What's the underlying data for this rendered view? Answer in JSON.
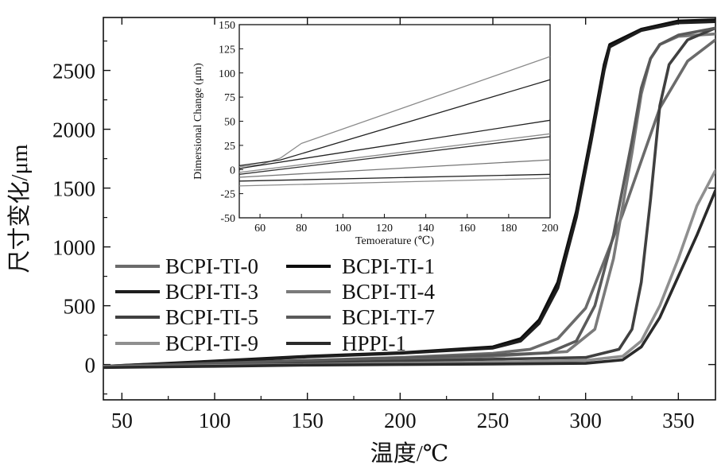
{
  "chart_data": [
    {
      "type": "line",
      "title": "",
      "xlabel": "温度/℃",
      "ylabel": "尺寸变化/μm",
      "xlim": [
        40,
        370
      ],
      "ylim": [
        -300,
        2950
      ],
      "xticks": [
        50,
        100,
        150,
        200,
        250,
        300,
        350
      ],
      "yticks": [
        0,
        500,
        1000,
        1500,
        2000,
        2500
      ],
      "grid": false,
      "legend_position": "center-left",
      "series": [
        {
          "name": "BCPI-TI-0",
          "color": "#6b6b6b",
          "x": [
            40,
            100,
            150,
            200,
            250,
            270,
            285,
            300,
            320,
            340,
            355,
            370
          ],
          "y": [
            -15,
            10,
            35,
            60,
            95,
            130,
            220,
            480,
            1280,
            2180,
            2580,
            2760
          ]
        },
        {
          "name": "BCPI-TI-1",
          "color": "#0d0d0d",
          "x": [
            40,
            100,
            150,
            200,
            250,
            265,
            275,
            285,
            295,
            303,
            310,
            313,
            330,
            350,
            370
          ],
          "y": [
            -15,
            30,
            70,
            100,
            150,
            220,
            380,
            700,
            1300,
            1950,
            2550,
            2720,
            2850,
            2920,
            2930
          ]
        },
        {
          "name": "BCPI-TI-3",
          "color": "#1e1e1e",
          "x": [
            40,
            100,
            150,
            200,
            250,
            265,
            275,
            285,
            295,
            303,
            310,
            313,
            330,
            350,
            370
          ],
          "y": [
            -15,
            25,
            65,
            95,
            140,
            200,
            350,
            650,
            1250,
            1900,
            2500,
            2700,
            2840,
            2905,
            2915
          ]
        },
        {
          "name": "BCPI-TI-4",
          "color": "#7a7a7a",
          "x": [
            40,
            100,
            150,
            200,
            250,
            290,
            305,
            315,
            325,
            330,
            335,
            340,
            350,
            370
          ],
          "y": [
            -15,
            5,
            25,
            45,
            70,
            110,
            300,
            900,
            1800,
            2300,
            2600,
            2720,
            2790,
            2810
          ]
        },
        {
          "name": "BCPI-TI-5",
          "color": "#404040",
          "x": [
            40,
            100,
            150,
            200,
            250,
            300,
            318,
            325,
            330,
            335,
            340,
            345,
            355,
            370
          ],
          "y": [
            -20,
            0,
            15,
            30,
            45,
            60,
            130,
            300,
            700,
            1400,
            2200,
            2550,
            2760,
            2860
          ]
        },
        {
          "name": "BCPI-TI-7",
          "color": "#5a5a5a",
          "x": [
            40,
            100,
            150,
            200,
            250,
            280,
            295,
            305,
            315,
            325,
            330,
            335,
            340,
            350,
            370
          ],
          "y": [
            -18,
            10,
            35,
            55,
            80,
            100,
            200,
            500,
            1100,
            1900,
            2350,
            2600,
            2720,
            2800,
            2860
          ]
        },
        {
          "name": "BCPI-TI-9",
          "color": "#8f8f8f",
          "x": [
            40,
            100,
            150,
            200,
            250,
            300,
            320,
            330,
            340,
            350,
            360,
            370
          ],
          "y": [
            -20,
            -10,
            0,
            10,
            20,
            35,
            70,
            200,
            500,
            900,
            1350,
            1650
          ]
        },
        {
          "name": "HPPI-1",
          "color": "#2a2a2a",
          "x": [
            40,
            100,
            150,
            200,
            250,
            300,
            320,
            330,
            340,
            350,
            360,
            370
          ],
          "y": [
            -25,
            -15,
            -5,
            0,
            5,
            10,
            40,
            150,
            400,
            750,
            1100,
            1480
          ]
        }
      ]
    },
    {
      "type": "line",
      "title": "",
      "xlabel": "Temoerature (℃)",
      "ylabel": "Dimersional Change (μm)",
      "xlim": [
        50,
        200
      ],
      "ylim": [
        -50,
        150
      ],
      "xticks": [
        60,
        80,
        100,
        120,
        140,
        160,
        180,
        200
      ],
      "yticks": [
        -50,
        -25,
        0,
        25,
        50,
        75,
        100,
        125,
        150
      ],
      "grid": false,
      "series": [
        {
          "color": "#8a8a8a",
          "x": [
            50,
            60,
            70,
            80,
            200
          ],
          "y": [
            3,
            5,
            12,
            27,
            117
          ]
        },
        {
          "color": "#222222",
          "x": [
            50,
            70,
            200
          ],
          "y": [
            4,
            10,
            93
          ]
        },
        {
          "color": "#222222",
          "x": [
            50,
            200
          ],
          "y": [
            1,
            51
          ]
        },
        {
          "color": "#8a8a8a",
          "x": [
            50,
            200
          ],
          "y": [
            -3,
            37
          ]
        },
        {
          "color": "#333333",
          "x": [
            50,
            200
          ],
          "y": [
            -5,
            34
          ]
        },
        {
          "color": "#777777",
          "x": [
            50,
            200
          ],
          "y": [
            -8,
            10
          ]
        },
        {
          "color": "#222222",
          "x": [
            50,
            200
          ],
          "y": [
            -12,
            -5
          ]
        },
        {
          "color": "#8a8a8a",
          "x": [
            50,
            200
          ],
          "y": [
            -17,
            -9
          ]
        }
      ]
    }
  ]
}
